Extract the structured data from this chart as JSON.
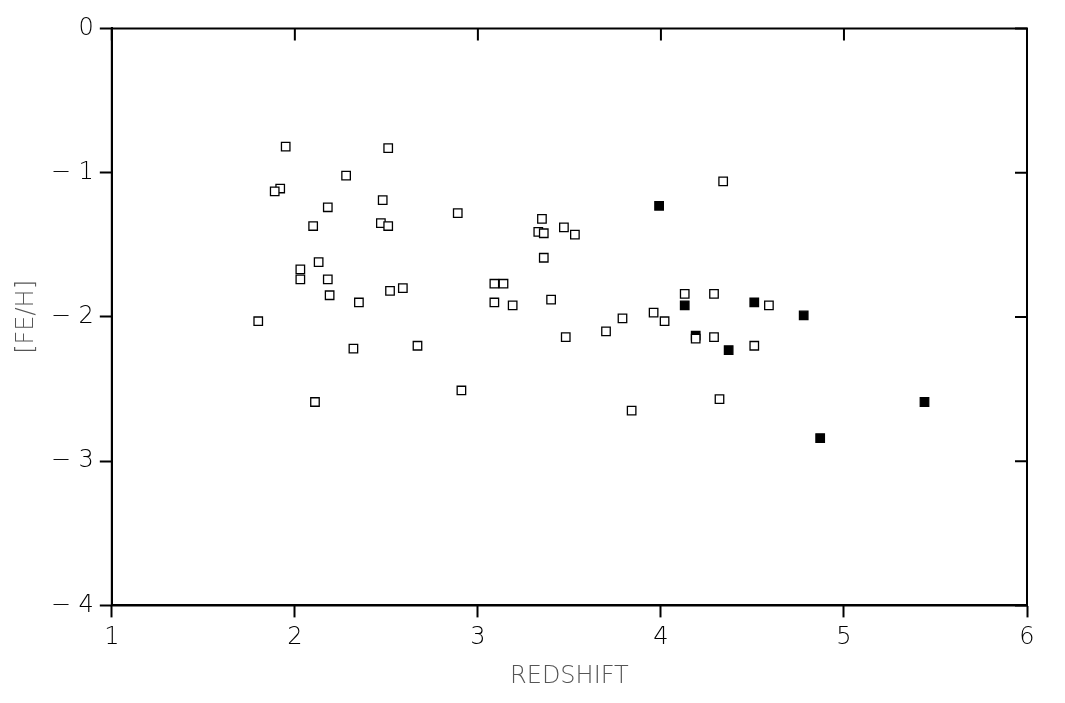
{
  "chart_data": {
    "type": "scatter",
    "xlabel": "REDSHIFT",
    "ylabel": "[FE/H]",
    "xlim": [
      1,
      6
    ],
    "ylim": [
      -4,
      0
    ],
    "xticks": [
      1,
      2,
      3,
      4,
      5,
      6
    ],
    "yticks": [
      -4,
      -3,
      -2,
      -1,
      0
    ],
    "grid": false,
    "legend": false,
    "marker": "square",
    "series": [
      {
        "color": "#000000",
        "x": [
          1.95,
          2.51,
          2.28,
          1.92,
          1.89,
          2.18,
          2.48,
          2.1,
          2.47,
          2.51,
          2.89,
          3.35,
          3.33,
          3.36,
          3.47,
          3.53,
          3.36,
          2.13,
          2.03,
          2.03,
          2.18,
          2.19,
          2.35,
          2.52,
          2.59,
          3.09,
          3.14,
          3.09,
          3.19,
          3.4,
          1.8,
          2.32,
          2.67,
          3.48,
          3.7,
          3.79,
          2.11,
          2.91,
          3.84,
          4.34,
          3.96,
          4.02,
          4.13,
          4.29,
          4.59,
          4.19,
          4.29,
          4.51,
          4.32
        ],
        "values": [
          -0.82,
          -0.83,
          -1.02,
          -1.11,
          -1.13,
          -1.24,
          -1.19,
          -1.37,
          -1.35,
          -1.37,
          -1.28,
          -1.32,
          -1.41,
          -1.42,
          -1.38,
          -1.43,
          -1.59,
          -1.62,
          -1.67,
          -1.74,
          -1.74,
          -1.85,
          -1.9,
          -1.82,
          -1.8,
          -1.77,
          -1.77,
          -1.9,
          -1.92,
          -1.88,
          -2.03,
          -2.22,
          -2.2,
          -2.14,
          -2.1,
          -2.01,
          -2.59,
          -2.51,
          -2.65,
          -1.06,
          -1.97,
          -2.03,
          -1.84,
          -1.84,
          -1.92,
          -2.15,
          -2.14,
          -2.2,
          -2.57
        ]
      },
      {
        "color": "#000000",
        "x": [
          3.99,
          4.13,
          4.51,
          4.78,
          4.19,
          4.37,
          4.87,
          5.44
        ],
        "values": [
          -1.23,
          -1.92,
          -1.9,
          -1.99,
          -2.13,
          -2.23,
          -2.84,
          -2.59
        ]
      }
    ]
  }
}
